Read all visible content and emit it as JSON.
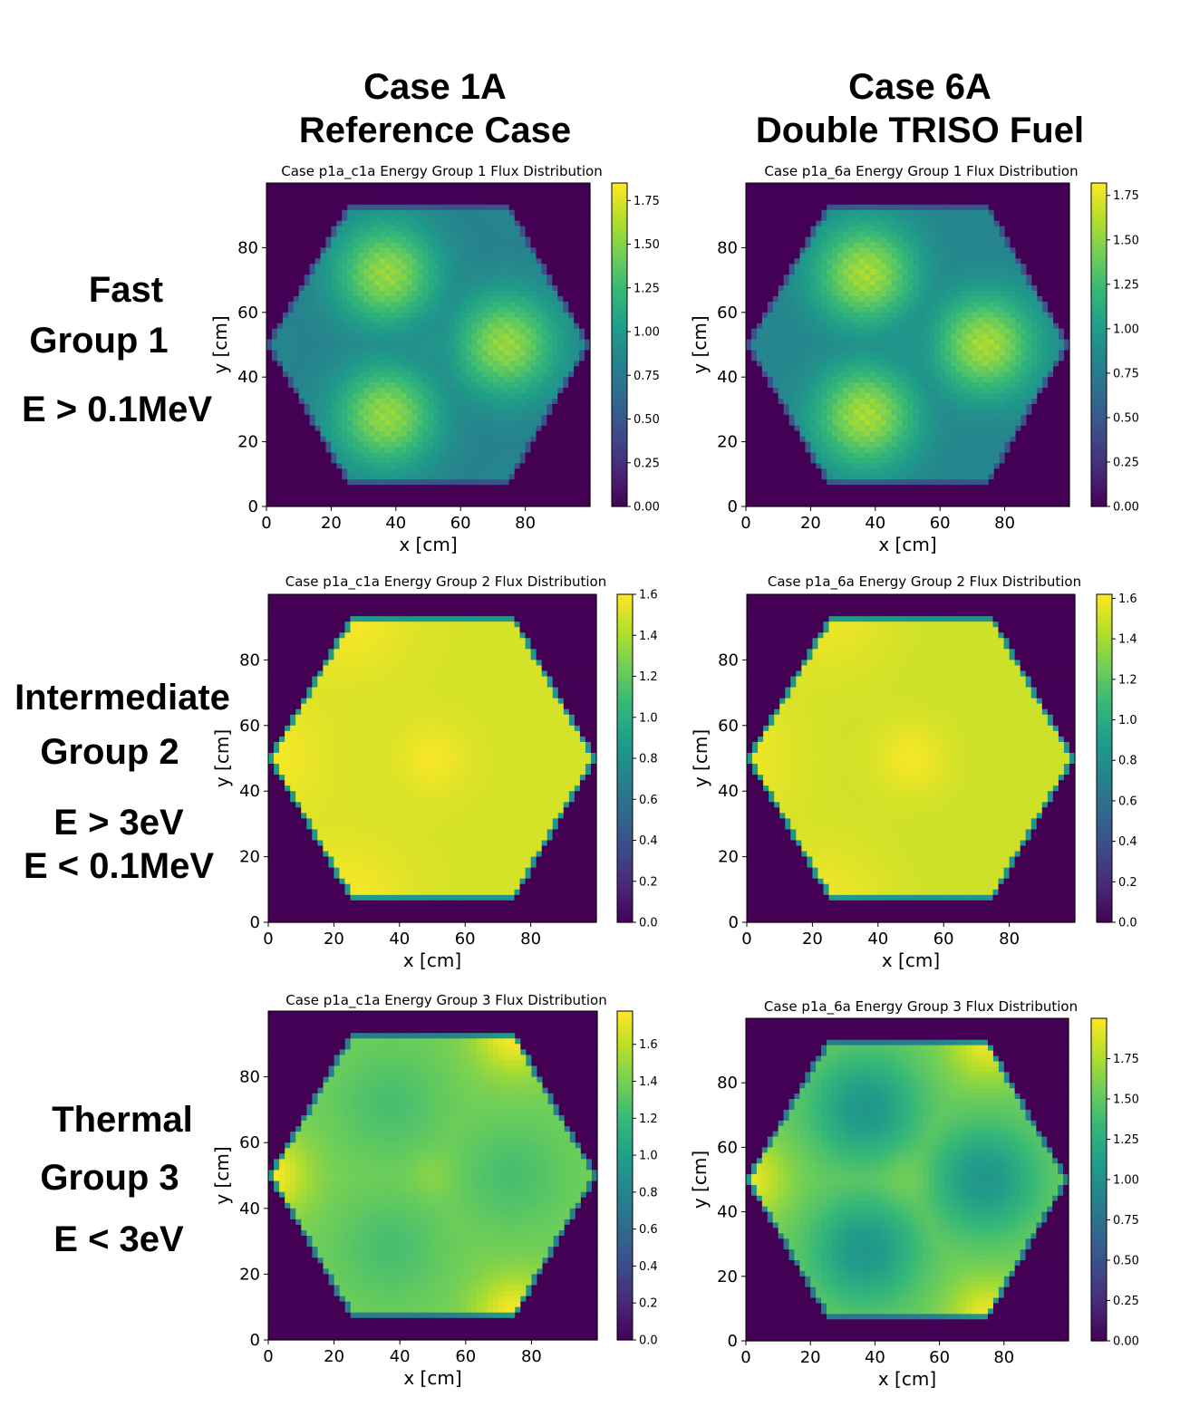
{
  "columns": [
    {
      "line1": "Case 1A",
      "line2": "Reference Case"
    },
    {
      "line1": "Case 6A",
      "line2": "Double TRISO Fuel"
    }
  ],
  "rows": [
    {
      "name": "Fast",
      "group": "Group 1",
      "energy1": "E > 0.1MeV",
      "energy2": ""
    },
    {
      "name": "Intermediate",
      "group": "Group 2",
      "energy1": "E > 3eV",
      "energy2": "E < 0.1MeV"
    },
    {
      "name": "Thermal",
      "group": "Group 3",
      "energy1": "E < 3eV",
      "energy2": ""
    }
  ],
  "colors": {
    "viridis": [
      "#440154",
      "#482878",
      "#3e4a89",
      "#31688e",
      "#26828e",
      "#1f9e89",
      "#35b779",
      "#6ece58",
      "#b5de2b",
      "#fde725"
    ],
    "background": "#ffffff"
  },
  "chart_data": [
    {
      "type": "heatmap",
      "title": "Case p1a_c1a Energy Group 1 Flux Distribution",
      "xlabel": "x [cm]",
      "ylabel": "y [cm]",
      "xlim": [
        0,
        100
      ],
      "ylim": [
        0,
        100
      ],
      "xticks": [
        "0",
        "20",
        "40",
        "60",
        "80"
      ],
      "yticks": [
        "0",
        "20",
        "40",
        "60",
        "80"
      ],
      "colorbar": {
        "min": 0,
        "max": 1.85,
        "ticks": [
          "0.00",
          "0.25",
          "0.50",
          "0.75",
          "1.00",
          "1.25",
          "1.50",
          "1.75"
        ]
      },
      "field": {
        "pattern": "blocks",
        "edge": 0.8,
        "block": 1.55,
        "corner_hot": [],
        "corner_cold": [
          [
            0,
            50
          ],
          [
            75,
            93
          ],
          [
            75,
            7
          ]
        ],
        "corner_value": 0.85,
        "center": 0.95,
        "stripes": true
      }
    },
    {
      "type": "heatmap",
      "title": "Case p1a_6a Energy Group 1 Flux Distribution",
      "xlabel": "x [cm]",
      "ylabel": "y [cm]",
      "xlim": [
        0,
        100
      ],
      "ylim": [
        0,
        100
      ],
      "xticks": [
        "0",
        "20",
        "40",
        "60",
        "80"
      ],
      "yticks": [
        "0",
        "20",
        "40",
        "60",
        "80"
      ],
      "colorbar": {
        "min": 0,
        "max": 1.82,
        "ticks": [
          "0.00",
          "0.25",
          "0.50",
          "0.75",
          "1.00",
          "1.25",
          "1.50",
          "1.75"
        ]
      },
      "field": {
        "pattern": "blocks",
        "edge": 0.8,
        "block": 1.57,
        "corner_hot": [],
        "corner_cold": [
          [
            0,
            50
          ],
          [
            75,
            93
          ],
          [
            75,
            7
          ]
        ],
        "corner_value": 0.85,
        "center": 0.95,
        "stripes": true
      }
    },
    {
      "type": "heatmap",
      "title": "Case p1a_c1a Energy Group 2 Flux Distribution",
      "xlabel": "x [cm]",
      "ylabel": "y [cm]",
      "xlim": [
        0,
        100
      ],
      "ylim": [
        0,
        100
      ],
      "xticks": [
        "0",
        "20",
        "40",
        "60",
        "80"
      ],
      "yticks": [
        "0",
        "20",
        "40",
        "60",
        "80"
      ],
      "colorbar": {
        "min": 0,
        "max": 1.6,
        "ticks": [
          "0.0",
          "0.2",
          "0.4",
          "0.6",
          "0.8",
          "1.0",
          "1.2",
          "1.4",
          "1.6"
        ]
      },
      "field": {
        "pattern": "flat",
        "edge": 1.45,
        "block": 1.5,
        "corner_hot": [
          [
            25,
            93
          ],
          [
            25,
            7
          ],
          [
            0,
            50
          ]
        ],
        "corner_cold": [],
        "corner_value": 1.58,
        "center": 1.58,
        "stripes": false
      }
    },
    {
      "type": "heatmap",
      "title": "Case p1a_6a Energy Group 2 Flux Distribution",
      "xlabel": "x [cm]",
      "ylabel": "y [cm]",
      "xlim": [
        0,
        100
      ],
      "ylim": [
        0,
        100
      ],
      "xticks": [
        "0",
        "20",
        "40",
        "60",
        "80"
      ],
      "yticks": [
        "0",
        "20",
        "40",
        "60",
        "80"
      ],
      "colorbar": {
        "min": 0,
        "max": 1.62,
        "ticks": [
          "0.0",
          "0.2",
          "0.4",
          "0.6",
          "0.8",
          "1.0",
          "1.2",
          "1.4",
          "1.6"
        ]
      },
      "field": {
        "pattern": "flat",
        "edge": 1.45,
        "block": 1.5,
        "corner_hot": [
          [
            25,
            93
          ],
          [
            25,
            7
          ],
          [
            0,
            50
          ]
        ],
        "corner_cold": [],
        "corner_value": 1.58,
        "center": 1.6,
        "stripes": false
      }
    },
    {
      "type": "heatmap",
      "title": "Case p1a_c1a Energy Group 3 Flux Distribution",
      "xlabel": "x [cm]",
      "ylabel": "y [cm]",
      "xlim": [
        0,
        100
      ],
      "ylim": [
        0,
        100
      ],
      "xticks": [
        "0",
        "20",
        "40",
        "60",
        "80"
      ],
      "yticks": [
        "0",
        "20",
        "40",
        "60",
        "80"
      ],
      "colorbar": {
        "min": 0,
        "max": 1.78,
        "ticks": [
          "0.0",
          "0.2",
          "0.4",
          "0.6",
          "0.8",
          "1.0",
          "1.2",
          "1.4",
          "1.6"
        ]
      },
      "field": {
        "pattern": "blocks",
        "edge": 1.4,
        "block": 1.25,
        "corner_hot": [
          [
            0,
            50
          ],
          [
            75,
            93
          ],
          [
            75,
            7
          ]
        ],
        "corner_cold": [],
        "corner_value": 1.78,
        "center": 1.45,
        "stripes": false
      }
    },
    {
      "type": "heatmap",
      "title": "Case p1a_6a Energy Group 3 Flux Distribution",
      "xlabel": "x [cm]",
      "ylabel": "y [cm]",
      "xlim": [
        0,
        100
      ],
      "ylim": [
        0,
        100
      ],
      "xticks": [
        "0",
        "20",
        "40",
        "60",
        "80"
      ],
      "yticks": [
        "0",
        "20",
        "40",
        "60",
        "80"
      ],
      "colorbar": {
        "min": 0,
        "max": 2.0,
        "ticks": [
          "0.00",
          "0.25",
          "0.50",
          "0.75",
          "1.00",
          "1.25",
          "1.50",
          "1.75"
        ]
      },
      "field": {
        "pattern": "blocks",
        "edge": 1.55,
        "block": 1.05,
        "corner_hot": [
          [
            0,
            50
          ],
          [
            75,
            93
          ],
          [
            75,
            7
          ]
        ],
        "corner_cold": [],
        "corner_value": 1.95,
        "center": 1.55,
        "stripes": false
      }
    }
  ]
}
